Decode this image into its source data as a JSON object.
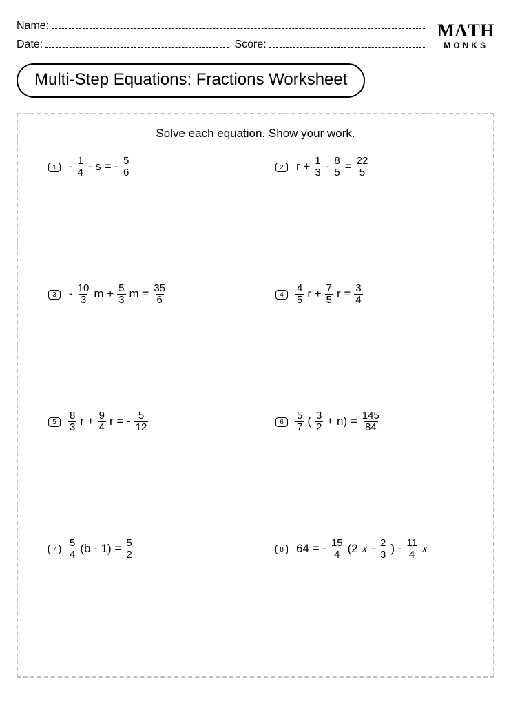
{
  "header": {
    "name_label": "Name:",
    "date_label": "Date:",
    "score_label": "Score:"
  },
  "logo": {
    "line1": "MΛTH",
    "line2": "MONKS"
  },
  "title": "Multi-Step Equations: Fractions Worksheet",
  "instruction": "Solve each equation. Show your work.",
  "problems": [
    {
      "num": "1",
      "parts": [
        {
          "type": "text",
          "v": "-"
        },
        {
          "type": "frac",
          "n": "1",
          "d": "4"
        },
        {
          "type": "text",
          "v": " - s = -"
        },
        {
          "type": "frac",
          "n": "5",
          "d": "6"
        }
      ]
    },
    {
      "num": "2",
      "parts": [
        {
          "type": "text",
          "v": "r +"
        },
        {
          "type": "frac",
          "n": "1",
          "d": "3"
        },
        {
          "type": "text",
          "v": " - "
        },
        {
          "type": "frac",
          "n": "8",
          "d": "5"
        },
        {
          "type": "text",
          "v": " = "
        },
        {
          "type": "frac",
          "n": "22",
          "d": "5"
        }
      ]
    },
    {
      "num": "3",
      "parts": [
        {
          "type": "text",
          "v": "-"
        },
        {
          "type": "frac",
          "n": "10",
          "d": "3"
        },
        {
          "type": "text",
          "v": "m + "
        },
        {
          "type": "frac",
          "n": "5",
          "d": "3"
        },
        {
          "type": "text",
          "v": "m = "
        },
        {
          "type": "frac",
          "n": "35",
          "d": "6"
        }
      ]
    },
    {
      "num": "4",
      "parts": [
        {
          "type": "frac",
          "n": "4",
          "d": "5"
        },
        {
          "type": "text",
          "v": "r + "
        },
        {
          "type": "frac",
          "n": "7",
          "d": "5"
        },
        {
          "type": "text",
          "v": "r = "
        },
        {
          "type": "frac",
          "n": "3",
          "d": "4"
        }
      ]
    },
    {
      "num": "5",
      "parts": [
        {
          "type": "frac",
          "n": "8",
          "d": "3"
        },
        {
          "type": "text",
          "v": "r + "
        },
        {
          "type": "frac",
          "n": "9",
          "d": "4"
        },
        {
          "type": "text",
          "v": "r = -"
        },
        {
          "type": "frac",
          "n": "5",
          "d": "12"
        }
      ]
    },
    {
      "num": "6",
      "parts": [
        {
          "type": "frac",
          "n": "5",
          "d": "7"
        },
        {
          "type": "text",
          "v": "("
        },
        {
          "type": "frac",
          "n": "3",
          "d": "2"
        },
        {
          "type": "text",
          "v": " + n) = "
        },
        {
          "type": "frac",
          "n": "145",
          "d": "84"
        }
      ]
    },
    {
      "num": "7",
      "parts": [
        {
          "type": "frac",
          "n": "5",
          "d": "4"
        },
        {
          "type": "text",
          "v": "(b - 1) = "
        },
        {
          "type": "frac",
          "n": "5",
          "d": "2"
        }
      ]
    },
    {
      "num": "8",
      "parts": [
        {
          "type": "text",
          "v": "64 = -"
        },
        {
          "type": "frac",
          "n": "15",
          "d": "4"
        },
        {
          "type": "text",
          "v": "(2"
        },
        {
          "type": "var",
          "v": "x"
        },
        {
          "type": "text",
          "v": " - "
        },
        {
          "type": "frac",
          "n": "2",
          "d": "3"
        },
        {
          "type": "text",
          "v": ") - "
        },
        {
          "type": "frac",
          "n": "11",
          "d": "4"
        },
        {
          "type": "var",
          "v": "x"
        }
      ]
    }
  ],
  "colors": {
    "text": "#000000",
    "background": "#ffffff",
    "dashed_border": "#bfbfbf"
  }
}
